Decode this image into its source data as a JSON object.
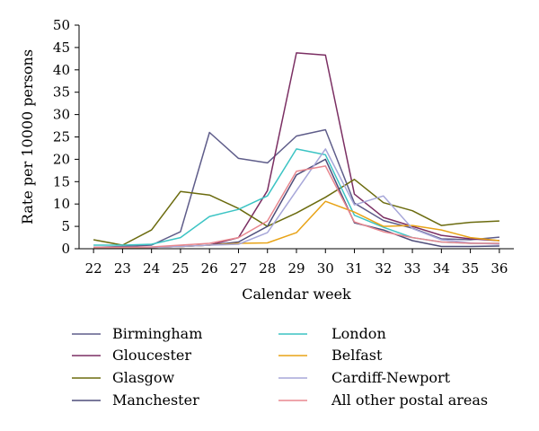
{
  "chart_data": {
    "type": "line",
    "xlabel": "Calendar week",
    "ylabel": "Rate per 10000 persons",
    "x": [
      22,
      23,
      24,
      25,
      26,
      27,
      28,
      29,
      30,
      31,
      32,
      33,
      34,
      35,
      36
    ],
    "x_tick_labels": [
      "22",
      "23",
      "24",
      "25",
      "26",
      "27",
      "28",
      "29",
      "30",
      "31",
      "32",
      "33",
      "34",
      "35",
      "36"
    ],
    "ylim": [
      0,
      50
    ],
    "y_ticks": [
      0,
      5,
      10,
      15,
      20,
      25,
      30,
      35,
      40,
      45,
      50
    ],
    "y_tick_labels": [
      "0",
      "5",
      "10",
      "15",
      "20",
      "25",
      "30",
      "35",
      "40",
      "45",
      "50"
    ],
    "grid": false,
    "legend_position": "bottom",
    "series": [
      {
        "name": "Birmingham",
        "color": "#5f5d8a",
        "values": [
          0.3,
          0.5,
          0.8,
          3.8,
          26.0,
          20.2,
          19.2,
          25.2,
          26.6,
          10.2,
          6.3,
          4.6,
          2.2,
          2.0,
          2.6
        ]
      },
      {
        "name": "Gloucester",
        "color": "#7b2f63",
        "values": [
          0.3,
          0.3,
          0.3,
          0.5,
          0.8,
          2.5,
          13.0,
          43.8,
          43.3,
          12.2,
          7.0,
          5.0,
          3.0,
          2.2,
          1.8
        ]
      },
      {
        "name": "Glasgow",
        "color": "#6b6b0e",
        "values": [
          2.0,
          0.8,
          4.2,
          12.8,
          12.0,
          9.0,
          5.0,
          8.0,
          11.5,
          15.5,
          10.3,
          8.5,
          5.2,
          5.9,
          6.2
        ]
      },
      {
        "name": "Manchester",
        "color": "#4e4d7a",
        "values": [
          0.2,
          0.2,
          0.3,
          0.5,
          0.8,
          1.5,
          5.0,
          16.5,
          20.0,
          5.8,
          4.2,
          1.8,
          0.5,
          0.5,
          0.6
        ]
      },
      {
        "name": "London",
        "color": "#3cc4c4",
        "values": [
          0.8,
          0.8,
          1.0,
          2.5,
          7.2,
          8.8,
          11.8,
          22.3,
          21.0,
          7.5,
          4.8,
          2.5,
          1.5,
          1.2,
          1.2
        ]
      },
      {
        "name": "Belfast",
        "color": "#e8a317",
        "values": [
          0.2,
          0.2,
          0.3,
          0.5,
          0.8,
          1.2,
          1.3,
          3.6,
          10.6,
          8.2,
          5.0,
          5.2,
          4.2,
          2.5,
          1.8
        ]
      },
      {
        "name": "Cardiff-Newport",
        "color": "#a7a7d9",
        "values": [
          0.3,
          0.3,
          0.3,
          0.5,
          0.8,
          1.0,
          3.6,
          13.0,
          22.3,
          9.8,
          11.8,
          4.5,
          2.0,
          1.3,
          1.0
        ]
      },
      {
        "name": "All other postal areas",
        "color": "#e8878f",
        "values": [
          0.3,
          0.3,
          0.4,
          0.8,
          1.2,
          2.5,
          6.2,
          17.3,
          18.5,
          6.0,
          3.8,
          2.5,
          1.5,
          1.2,
          1.2
        ]
      }
    ]
  }
}
